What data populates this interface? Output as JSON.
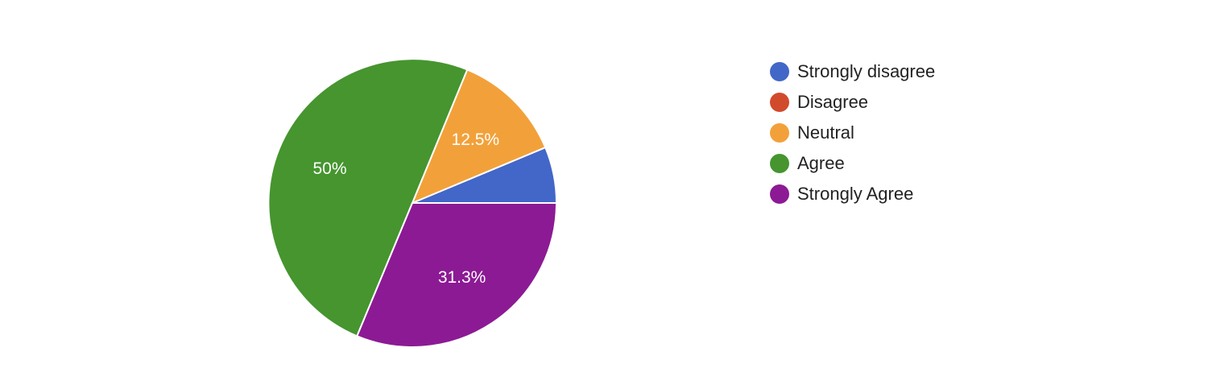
{
  "chart_data": {
    "type": "pie",
    "categories": [
      "Strongly disagree",
      "Disagree",
      "Neutral",
      "Agree",
      "Strongly Agree"
    ],
    "values": [
      6.3,
      0,
      12.5,
      50,
      31.3
    ],
    "data_labels": [
      "",
      "",
      "12.5%",
      "50%",
      "31.3%"
    ],
    "colors": [
      "#4267c8",
      "#d24a2c",
      "#f2a13a",
      "#46952f",
      "#8c1a94"
    ],
    "legend_position": "right"
  }
}
